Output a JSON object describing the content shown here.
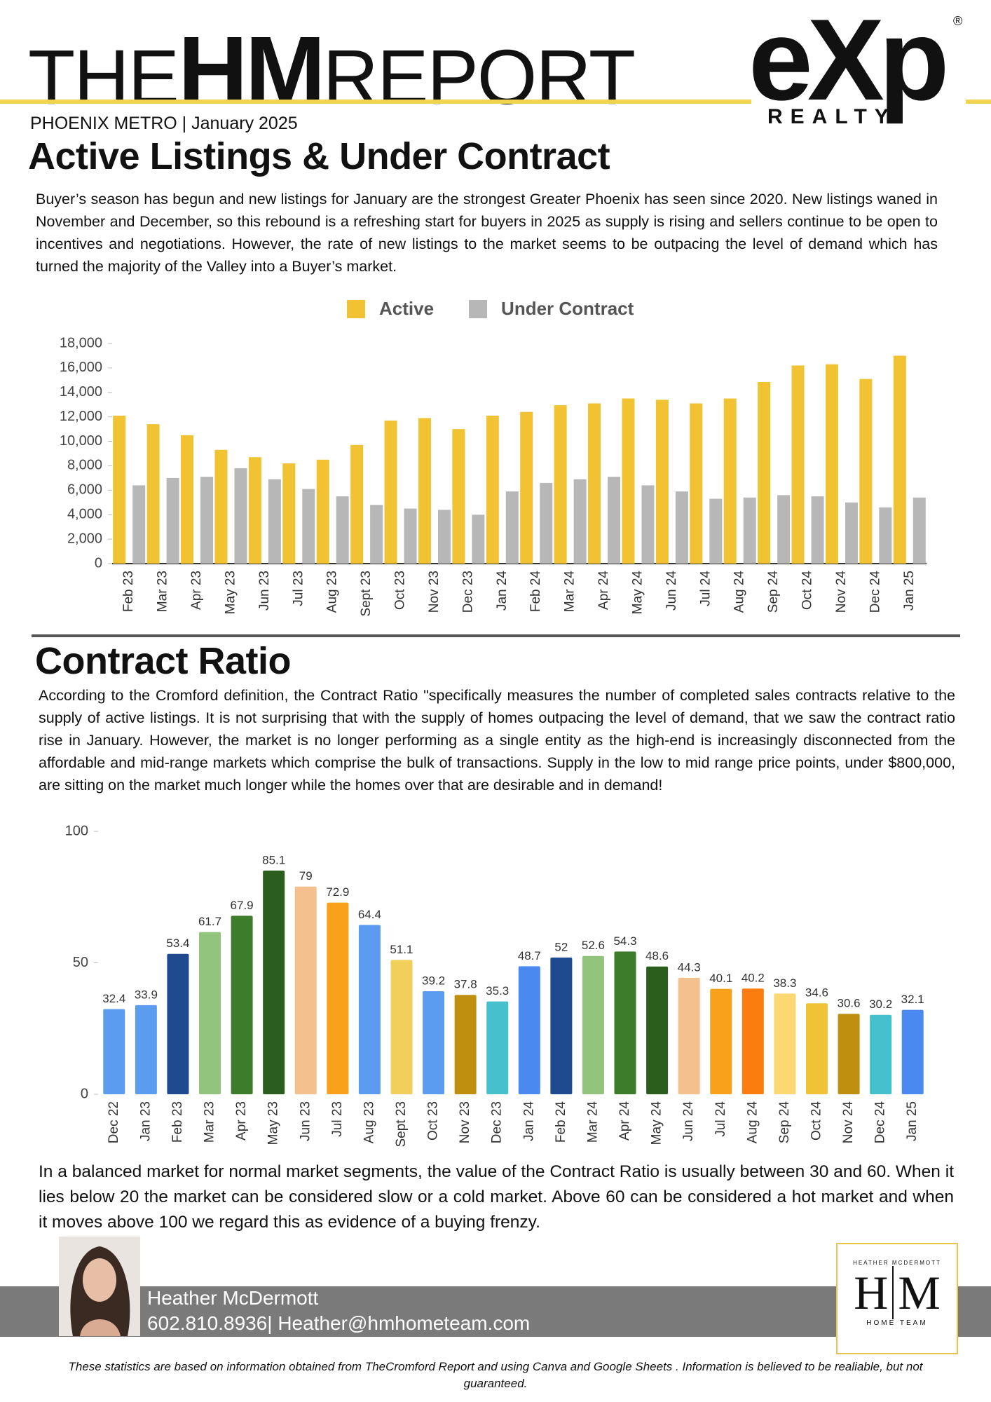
{
  "header": {
    "the": "THE",
    "hm": "HM",
    "report": "REPORT",
    "logo": "eXp",
    "logo_mark": "®",
    "logo_sub": "REALTY",
    "subtitle": "PHOENIX METRO | January 2025"
  },
  "section1": {
    "heading": "Active Listings & Under Contract",
    "body": "Buyer’s season has begun and new listings for January are the strongest Greater Phoenix has seen since 2020. New listings waned in November and December, so this rebound is a refreshing start for buyers in 2025 as supply is rising and sellers continue to be open to incentives and negotiations. However, the rate of new listings to the market seems to be outpacing the level of demand which has turned the majority of the Valley into a Buyer’s market."
  },
  "section2": {
    "heading": "Contract Ratio",
    "body": "According to the Cromford definition, the Contract Ratio \"specifically measures the number of completed sales contracts relative to the supply of active listings. It is not surprising that with the supply of homes outpacing the level of demand, that we saw the contract ratio rise in January.  However, the market is no longer performing as a single entity as the high-end is increasingly disconnected from the affordable and mid-range markets which comprise the bulk of transactions. Supply in the low to mid range price points, under $800,000, are sitting on the market much longer while the homes over that are desirable and in demand!",
    "note": "In a balanced market for normal market segments, the value of the Contract Ratio is usually between 30 and 60. When it lies below 20 the market can be considered slow or a cold market. Above 60 can be considered a hot market and when it moves above 100 we regard this as evidence of a buying frenzy."
  },
  "footer": {
    "name": "Heather McDermott",
    "contact": "602.810.8936| Heather@hmhometeam.com",
    "logo_top": "HEATHER MCDERMOTT",
    "logo_h": "H",
    "logo_m": "M",
    "logo_bottom": "HOME TEAM",
    "disclaimer": "These statistics are based on information obtained from TheCromford Report and using Canva and Google Sheets . Information is believed to be realiable, but not guaranteed."
  },
  "chart_data": [
    {
      "type": "bar",
      "categories": [
        "Feb 23",
        "Mar 23",
        "Apr 23",
        "May 23",
        "Jun 23",
        "Jul 23",
        "Aug 23",
        "Sept 23",
        "Oct 23",
        "Nov 23",
        "Dec 23",
        "Jan 24",
        "Feb 24",
        "Mar 24",
        "Apr 24",
        "May 24",
        "Jun 24",
        "Jul 24",
        "Aug 24",
        "Sep 24",
        "Oct 24",
        "Nov 24",
        "Dec 24",
        "Jan 25"
      ],
      "series": [
        {
          "name": "Active",
          "color": "#f1c232",
          "values": [
            12100,
            11400,
            10500,
            9300,
            8700,
            8200,
            8500,
            9700,
            11700,
            11900,
            11000,
            12100,
            12400,
            12950,
            13100,
            13500,
            13400,
            13100,
            13500,
            14850,
            16200,
            16300,
            15100,
            17000
          ]
        },
        {
          "name": "Under Contract",
          "color": "#b7b7b7",
          "values": [
            6400,
            7000,
            7100,
            7800,
            6900,
            6100,
            5500,
            4800,
            4500,
            4400,
            4000,
            5900,
            6600,
            6900,
            7100,
            6400,
            5900,
            5300,
            5400,
            5600,
            5500,
            5000,
            4600,
            5400
          ]
        }
      ],
      "ylim": [
        0,
        18000
      ],
      "yticks": [
        0,
        {
          "value": 2000,
          "label": "2,000"
        },
        {
          "value": 4000,
          "label": "4,000"
        },
        {
          "value": 6000,
          "label": "6,000"
        },
        {
          "value": 8000,
          "label": "8,000"
        },
        {
          "value": 10000,
          "label": "10,000"
        },
        {
          "value": 12000,
          "label": "12,000"
        },
        {
          "value": 14000,
          "label": "14,000"
        },
        {
          "value": 16000,
          "label": "16,000"
        },
        {
          "value": 18000,
          "label": "18,000"
        }
      ],
      "legend": "top"
    },
    {
      "type": "bar",
      "categories": [
        "Dec 22",
        "Jan 23",
        "Feb 23",
        "Mar 23",
        "Apr 23",
        "May 23",
        "Jun 23",
        "Jul 23",
        "Aug 23",
        "Sept 23",
        "Oct 23",
        "Nov 23",
        "Dec 23",
        "Jan 24",
        "Feb 24",
        "Mar 24",
        "Apr 24",
        "May 24",
        "Jun 24",
        "Jul 24",
        "Aug 24",
        "Sep 24",
        "Oct 24",
        "Nov 24",
        "Dec 24",
        "Jan 25"
      ],
      "values": [
        32.4,
        33.9,
        53.4,
        61.7,
        67.9,
        85.1,
        79,
        72.9,
        64.4,
        51.1,
        39.2,
        37.8,
        35.3,
        48.7,
        52,
        52.6,
        54.3,
        48.6,
        44.3,
        40.1,
        40.2,
        38.3,
        34.6,
        30.6,
        30.2,
        32.1
      ],
      "colors": [
        "#5b9cf0",
        "#5b9cf0",
        "#1f4a8f",
        "#93c47d",
        "#3d7c2a",
        "#2b5e1e",
        "#f4c08e",
        "#f9a11b",
        "#5b9cf0",
        "#f2cf5b",
        "#5b9cf0",
        "#bf9010",
        "#45c0cc",
        "#4a8af0",
        "#1f4a8f",
        "#93c47d",
        "#3d7c2a",
        "#2b5e1e",
        "#f4c08e",
        "#f9a11b",
        "#fb7d10",
        "#fcd872",
        "#f0c236",
        "#bf9010",
        "#45c0cc",
        "#4a8af0"
      ],
      "ylim": [
        0,
        100
      ],
      "yticks": [
        0,
        50,
        100
      ]
    }
  ]
}
